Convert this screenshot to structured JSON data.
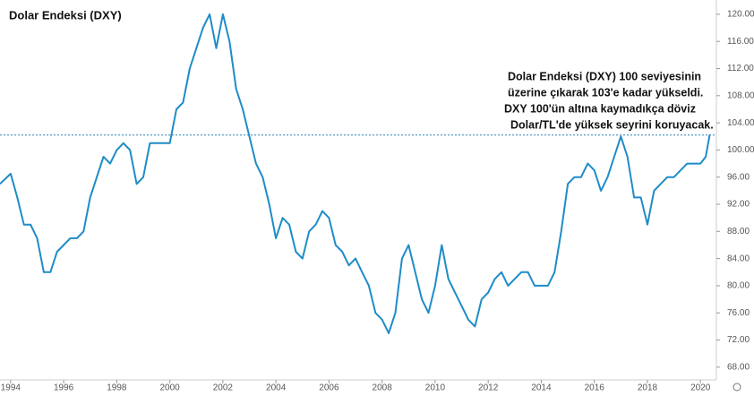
{
  "chart_data": {
    "type": "line",
    "title": "Dolar Endeksi (DXY)",
    "annotation": [
      "Dolar Endeksi (DXY) 100 seviyesinin",
      "üzerine çıkarak 103'e kadar yükseldi.",
      "DXY 100'ün altına kaymadıkça döviz",
      "Dolar/TL'de yüksek seyrini koruyacak."
    ],
    "reference_line": 102.2,
    "xlim": [
      1993.6,
      2020.6
    ],
    "ylim": [
      65.6,
      122.1
    ],
    "xticks": [
      1994,
      1996,
      1998,
      2000,
      2002,
      2004,
      2006,
      2008,
      2010,
      2012,
      2014,
      2016,
      2018,
      2020
    ],
    "yticks": [
      {
        "value": 68,
        "label": "68.00"
      },
      {
        "value": 72,
        "label": "72.00"
      },
      {
        "value": 76,
        "label": "76.00"
      },
      {
        "value": 80,
        "label": "80.00"
      },
      {
        "value": 84,
        "label": "84.00"
      },
      {
        "value": 88,
        "label": "88.00"
      },
      {
        "value": 92,
        "label": "92.00"
      },
      {
        "value": 96,
        "label": "96.00"
      },
      {
        "value": 100,
        "label": "100.00"
      },
      {
        "value": 104,
        "label": "104.00"
      },
      {
        "value": 108,
        "label": "108.00"
      },
      {
        "value": 112,
        "label": "112.00"
      },
      {
        "value": 116,
        "label": "116.00"
      },
      {
        "value": 120,
        "label": "120.00"
      }
    ],
    "series": [
      {
        "color": "#1e8cc8",
        "x": [
          1993.6,
          1994.0,
          1994.25,
          1994.5,
          1994.75,
          1995.0,
          1995.25,
          1995.5,
          1995.75,
          1996.0,
          1996.25,
          1996.5,
          1996.75,
          1997.0,
          1997.25,
          1997.5,
          1997.75,
          1998.0,
          1998.25,
          1998.5,
          1998.75,
          1999.0,
          1999.25,
          1999.5,
          1999.75,
          2000.0,
          2000.25,
          2000.5,
          2000.75,
          2001.0,
          2001.25,
          2001.5,
          2001.75,
          2002.0,
          2002.25,
          2002.5,
          2002.75,
          2003.0,
          2003.25,
          2003.5,
          2003.75,
          2004.0,
          2004.25,
          2004.5,
          2004.75,
          2005.0,
          2005.25,
          2005.5,
          2005.75,
          2006.0,
          2006.25,
          2006.5,
          2006.75,
          2007.0,
          2007.25,
          2007.5,
          2007.75,
          2008.0,
          2008.25,
          2008.5,
          2008.75,
          2009.0,
          2009.25,
          2009.5,
          2009.75,
          2010.0,
          2010.25,
          2010.5,
          2010.75,
          2011.0,
          2011.25,
          2011.5,
          2011.75,
          2012.0,
          2012.25,
          2012.5,
          2012.75,
          2013.0,
          2013.25,
          2013.5,
          2013.75,
          2014.0,
          2014.25,
          2014.5,
          2014.75,
          2015.0,
          2015.25,
          2015.5,
          2015.75,
          2016.0,
          2016.25,
          2016.5,
          2016.75,
          2017.0,
          2017.25,
          2017.5,
          2017.75,
          2018.0,
          2018.25,
          2018.5,
          2018.75,
          2019.0,
          2019.25,
          2019.5,
          2019.75,
          2020.0,
          2020.2,
          2020.35
        ],
        "values": [
          95,
          96.5,
          93,
          89,
          89,
          87,
          82,
          82,
          85,
          86,
          87,
          87,
          88,
          93,
          96,
          99,
          98,
          100,
          101,
          100,
          95,
          96,
          101,
          101,
          101,
          101,
          106,
          107,
          112,
          115,
          118,
          120,
          115,
          120,
          116,
          109,
          106,
          102,
          98,
          96,
          92,
          87,
          90,
          89,
          85,
          84,
          88,
          89,
          91,
          90,
          86,
          85,
          83,
          84,
          82,
          80,
          76,
          75,
          73,
          76,
          84,
          86,
          82,
          78,
          76,
          80,
          86,
          81,
          79,
          77,
          75,
          74,
          78,
          79,
          81,
          82,
          80,
          81,
          82,
          82,
          80,
          80,
          80,
          82,
          88,
          95,
          96,
          96,
          98,
          97,
          94,
          96,
          99,
          102,
          99,
          93,
          93,
          89,
          94,
          95,
          96,
          96,
          97,
          98,
          98,
          98,
          99,
          102.3
        ]
      }
    ]
  }
}
